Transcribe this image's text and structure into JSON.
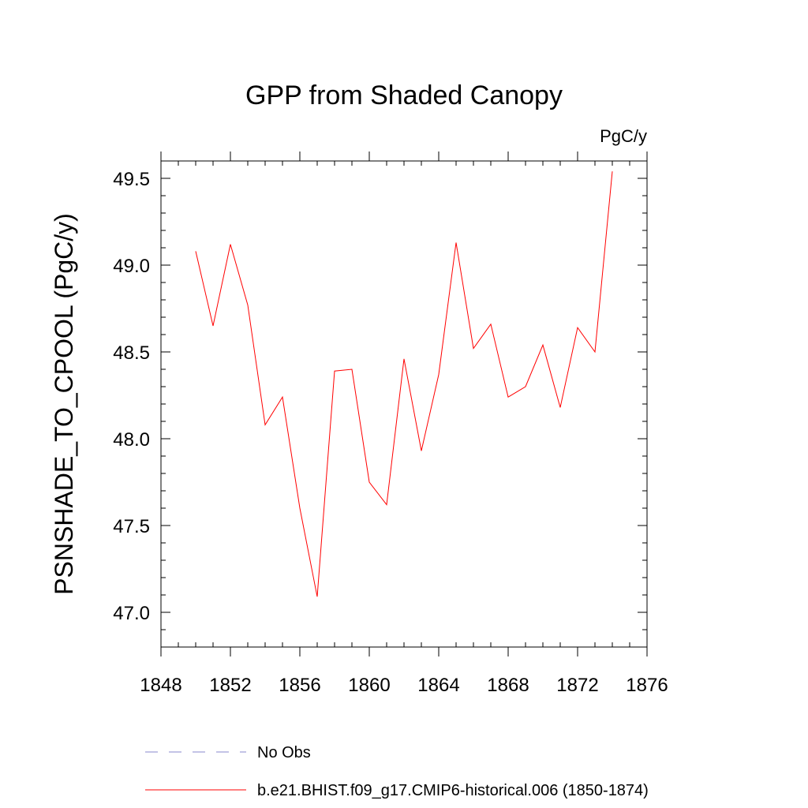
{
  "chart_data": {
    "type": "line",
    "title": "GPP from Shaded Canopy",
    "units_label": "PgC/y",
    "ylabel": "PSNSHADE_TO_CPOOL  (PgC/y)",
    "xlabel": "",
    "xlim": [
      1848,
      1876
    ],
    "ylim": [
      46.8,
      49.6
    ],
    "x_ticks": [
      1848,
      1852,
      1856,
      1860,
      1864,
      1868,
      1872,
      1876
    ],
    "x_tick_labels": [
      "1848",
      "1852",
      "1856",
      "1860",
      "1864",
      "1868",
      "1872",
      "1876"
    ],
    "y_ticks": [
      47.0,
      47.5,
      48.0,
      48.5,
      49.0,
      49.5
    ],
    "y_tick_labels": [
      "47.0",
      "47.5",
      "48.0",
      "48.5",
      "49.0",
      "49.5"
    ],
    "grid": false,
    "legend_position": "bottom",
    "series": [
      {
        "name": "b.e21.BHIST.f09_g17.CMIP6-historical.006 (1850-1874)",
        "color": "#ff0000",
        "style": "solid",
        "x": [
          1850,
          1851,
          1852,
          1853,
          1854,
          1855,
          1856,
          1857,
          1858,
          1859,
          1860,
          1861,
          1862,
          1863,
          1864,
          1865,
          1866,
          1867,
          1868,
          1869,
          1870,
          1871,
          1872,
          1873,
          1874
        ],
        "y": [
          49.08,
          48.65,
          49.12,
          48.77,
          48.08,
          48.24,
          47.6,
          47.09,
          48.39,
          48.4,
          47.75,
          47.62,
          48.46,
          47.93,
          48.37,
          49.13,
          48.52,
          48.66,
          48.24,
          48.3,
          48.54,
          48.18,
          48.64,
          48.5,
          49.54
        ]
      }
    ],
    "legend": [
      {
        "label": "No Obs",
        "color": "#8888cc",
        "style": "dashed"
      },
      {
        "label": "b.e21.BHIST.f09_g17.CMIP6-historical.006 (1850-1874)",
        "color": "#ff0000",
        "style": "solid"
      }
    ]
  }
}
